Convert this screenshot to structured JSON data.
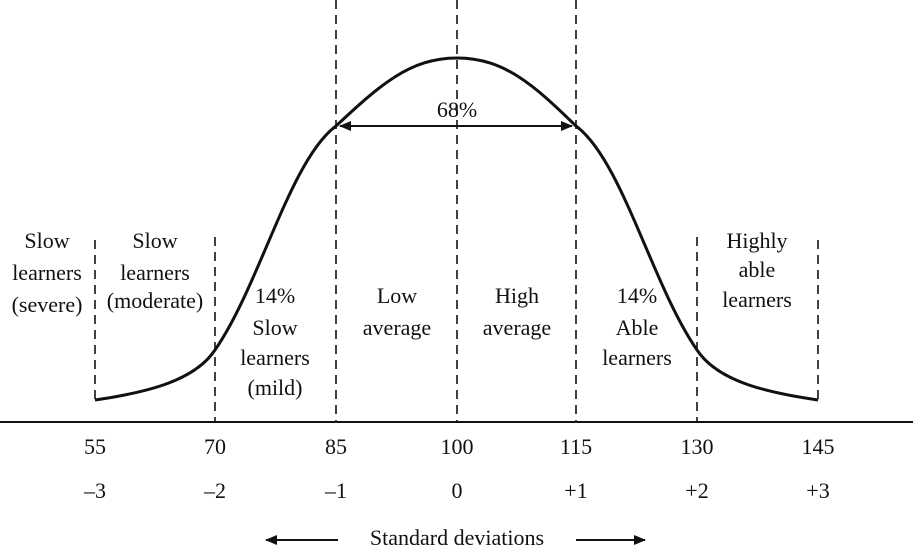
{
  "title_arrow_label": "68%",
  "axis_caption": "Standard deviations",
  "ticks": [
    {
      "score": "55",
      "sd": "–3"
    },
    {
      "score": "70",
      "sd": "–2"
    },
    {
      "score": "85",
      "sd": "–1"
    },
    {
      "score": "100",
      "sd": "0"
    },
    {
      "score": "115",
      "sd": "+1"
    },
    {
      "score": "130",
      "sd": "+2"
    },
    {
      "score": "145",
      "sd": "+3"
    }
  ],
  "regions": [
    {
      "lines": [
        "Slow",
        "learners",
        "(severe)"
      ]
    },
    {
      "lines": [
        "Slow",
        "learners",
        "(moderate)"
      ]
    },
    {
      "lines": [
        "14%",
        "Slow",
        "learners",
        "(mild)"
      ]
    },
    {
      "lines": [
        "Low",
        "average"
      ]
    },
    {
      "lines": [
        "High",
        "average"
      ]
    },
    {
      "lines": [
        "14%",
        "Able",
        "learners"
      ]
    },
    {
      "lines": [
        "Highly",
        "able",
        "learners"
      ]
    }
  ]
}
